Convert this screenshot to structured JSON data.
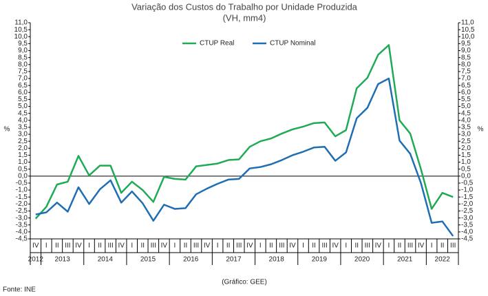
{
  "chart_data": {
    "type": "line",
    "title": "Variação dos Custos do Trabalho por Unidade Produzida",
    "subtitle": "(VH, mm4)",
    "y_label": "%",
    "y2_label": "%",
    "source": "Fonte: INE",
    "note": "(Gráfico: GEE)",
    "categories": [
      "IV",
      "I",
      "II",
      "III",
      "IV",
      "I",
      "II",
      "III",
      "IV",
      "I",
      "II",
      "III",
      "IV",
      "I",
      "II",
      "III",
      "IV",
      "I",
      "II",
      "III",
      "IV",
      "I",
      "II",
      "III",
      "IV",
      "I",
      "II",
      "III",
      "IV",
      "I",
      "II",
      "III",
      "IV",
      "I",
      "II",
      "III",
      "IV",
      "I",
      "II",
      "III"
    ],
    "years": [
      "2012",
      "2013",
      "2014",
      "2015",
      "2016",
      "2017",
      "2018",
      "2019",
      "2020",
      "2021",
      "2022"
    ],
    "series": [
      {
        "name": "CTUP Real",
        "color": "#1faa55",
        "values": [
          -3.05,
          -2.2,
          -0.6,
          -0.4,
          1.45,
          0.05,
          0.75,
          0.75,
          -1.2,
          -0.4,
          -1.0,
          -1.85,
          -0.05,
          -0.2,
          -0.25,
          0.7,
          0.8,
          0.9,
          1.15,
          1.2,
          2.1,
          2.5,
          2.7,
          3.05,
          3.35,
          3.55,
          3.8,
          3.85,
          2.85,
          3.3,
          6.3,
          7.05,
          8.7,
          9.4,
          4.0,
          3.05,
          0.5,
          -2.35,
          -1.2,
          -1.5
        ]
      },
      {
        "name": "CTUP Nominal",
        "color": "#1f6db3",
        "values": [
          -2.75,
          -2.6,
          -1.9,
          -2.55,
          -0.8,
          -2.0,
          -0.95,
          -0.3,
          -1.9,
          -1.1,
          -1.95,
          -3.2,
          -2.05,
          -2.35,
          -2.3,
          -1.3,
          -0.9,
          -0.55,
          -0.25,
          -0.2,
          0.55,
          0.65,
          0.85,
          1.15,
          1.5,
          1.75,
          2.05,
          2.1,
          1.1,
          1.7,
          4.15,
          4.9,
          6.6,
          7.0,
          2.55,
          1.6,
          -0.5,
          -3.35,
          -3.25,
          -4.3
        ]
      }
    ],
    "ylim": [
      -4.5,
      11.0
    ],
    "yticks": [
      {
        "value": -4.5,
        "label": "-4,5"
      },
      {
        "value": -4,
        "label": "-4,0"
      },
      {
        "value": -3.5,
        "label": "-3,5"
      },
      {
        "value": -3,
        "label": "-3,0"
      },
      {
        "value": -2.5,
        "label": "-2,5"
      },
      {
        "value": -2,
        "label": "-2,0"
      },
      {
        "value": -1.5,
        "label": "-1,5"
      },
      {
        "value": -1,
        "label": "-1,0"
      },
      {
        "value": -0.5,
        "label": "-0,5"
      },
      {
        "value": 0,
        "label": "0,0"
      },
      {
        "value": 0.5,
        "label": "0,5"
      },
      {
        "value": 1,
        "label": "1,0"
      },
      {
        "value": 1.5,
        "label": "1,5"
      },
      {
        "value": 2,
        "label": "2,0"
      },
      {
        "value": 2.5,
        "label": "2,5"
      },
      {
        "value": 3,
        "label": "3,0"
      },
      {
        "value": 3.5,
        "label": "3,5"
      },
      {
        "value": 4,
        "label": "4,0"
      },
      {
        "value": 4.5,
        "label": "4,5"
      },
      {
        "value": 5,
        "label": "5,0"
      },
      {
        "value": 5.5,
        "label": "5,5"
      },
      {
        "value": 6,
        "label": "6,0"
      },
      {
        "value": 6.5,
        "label": "6,5"
      },
      {
        "value": 7,
        "label": "7,0"
      },
      {
        "value": 7.5,
        "label": "7,5"
      },
      {
        "value": 8,
        "label": "8,0"
      },
      {
        "value": 8.5,
        "label": "8,5"
      },
      {
        "value": 9,
        "label": "9,0"
      },
      {
        "value": 9.5,
        "label": "9,5"
      },
      {
        "value": 10,
        "label": "10,0"
      },
      {
        "value": 10.5,
        "label": "10,5"
      },
      {
        "value": 11,
        "label": "11,0"
      }
    ],
    "y2lim": [
      -4.5,
      11.0
    ],
    "y2ticks": [
      {
        "value": -4.5,
        "label": "-4,5"
      },
      {
        "value": -4,
        "label": "-4,0"
      },
      {
        "value": -3.5,
        "label": "-3,5"
      },
      {
        "value": -3,
        "label": "-3,0"
      },
      {
        "value": -2.5,
        "label": "-2,5"
      },
      {
        "value": -2,
        "label": "-2,0"
      },
      {
        "value": -1.5,
        "label": "-1,5"
      },
      {
        "value": -1,
        "label": "-1,0"
      },
      {
        "value": -0.5,
        "label": "-0,5"
      },
      {
        "value": 0,
        "label": "0,0"
      },
      {
        "value": 0.5,
        "label": "0,5"
      },
      {
        "value": 1,
        "label": "1,0"
      },
      {
        "value": 1.5,
        "label": "1,5"
      },
      {
        "value": 2,
        "label": "2,0"
      },
      {
        "value": 2.5,
        "label": "2,5"
      },
      {
        "value": 3,
        "label": "3,0"
      },
      {
        "value": 3.5,
        "label": "3,5"
      },
      {
        "value": 4,
        "label": "4,0"
      },
      {
        "value": 4.5,
        "label": "4,5"
      },
      {
        "value": 5,
        "label": "5,0"
      },
      {
        "value": 5.5,
        "label": "5,5"
      },
      {
        "value": 6,
        "label": "6,0"
      },
      {
        "value": 6.5,
        "label": "6,5"
      },
      {
        "value": 7,
        "label": "7,0"
      },
      {
        "value": 7.5,
        "label": "7,5"
      },
      {
        "value": 8,
        "label": "8,0"
      },
      {
        "value": 8.5,
        "label": "8,5"
      },
      {
        "value": 9,
        "label": "9,0"
      },
      {
        "value": 9.5,
        "label": "9,5"
      },
      {
        "value": 10,
        "label": "10,0"
      },
      {
        "value": 10.5,
        "label": "10,5"
      },
      {
        "value": 11,
        "label": "11,0"
      }
    ],
    "legend": "top-center",
    "grid": false
  }
}
